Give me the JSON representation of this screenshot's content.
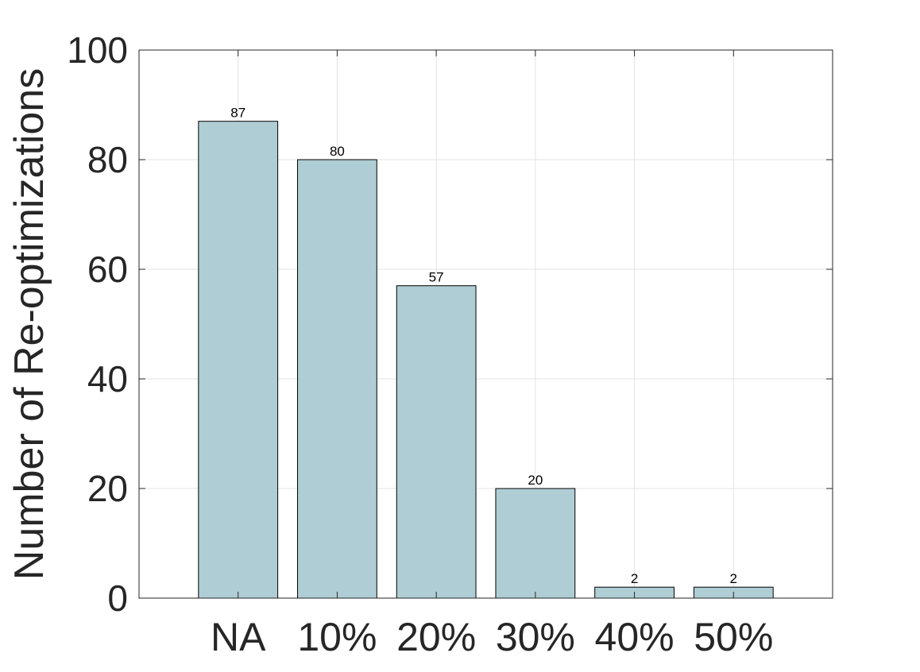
{
  "chart_data": {
    "type": "bar",
    "categories": [
      "NA",
      "10%",
      "20%",
      "30%",
      "40%",
      "50%"
    ],
    "values": [
      87,
      80,
      57,
      20,
      2,
      2
    ],
    "data_labels": [
      "87",
      "80",
      "57",
      "20",
      "2",
      "2"
    ],
    "title": "",
    "xlabel": "",
    "ylabel": "Number of Re-optimizations",
    "ylim": [
      0,
      100
    ],
    "yticks": [
      0,
      20,
      40,
      60,
      80,
      100
    ],
    "ytick_labels": [
      "0",
      "20",
      "40",
      "60",
      "80",
      "100"
    ],
    "grid": true,
    "legend": "none",
    "bar_color": "#afcdd4",
    "bar_edge_color": "#000000"
  }
}
